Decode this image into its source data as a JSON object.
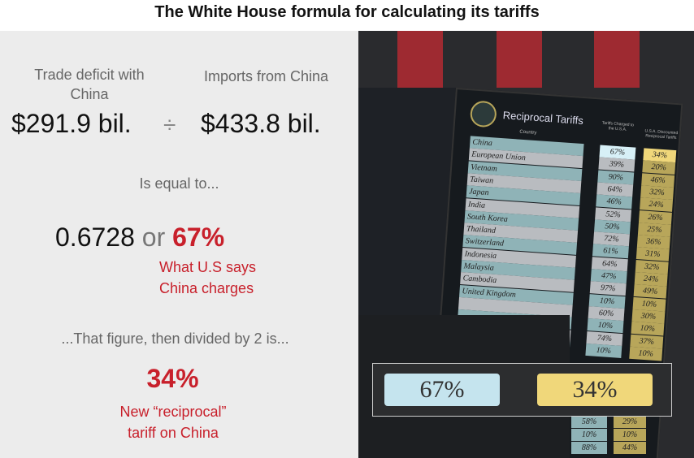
{
  "title": "The White House formula for calculating its tariffs",
  "formula": {
    "deficit_label": "Trade deficit with China",
    "deficit_value": "$291.9 bil.",
    "divide_symbol": "÷",
    "imports_label": "Imports from China",
    "imports_value": "$433.8 bil.",
    "equal_text": "Is equal to...",
    "ratio": "0.6728",
    "or_text": "or",
    "percent": "67%",
    "percent_caption": "What U.S says China charges",
    "divided_text": "...That figure, then divided by 2 is...",
    "result": "34%",
    "result_caption": "New “reciprocal” tariff on China"
  },
  "colors": {
    "accent_red": "#c8202b",
    "panel_bg": "#ececec"
  },
  "photo": {
    "board_title": "Reciprocal Tariffs",
    "col_country": "Country",
    "col_charged": "Tariffs Charged to the U.S.A.",
    "col_reciprocal": "U.S.A. Discounted Reciprocal Tariffs",
    "rows": [
      {
        "country": "China",
        "charged": "67%",
        "reciprocal": "34%"
      },
      {
        "country": "European Union",
        "charged": "39%",
        "reciprocal": "20%"
      },
      {
        "country": "Vietnam",
        "charged": "90%",
        "reciprocal": "46%"
      },
      {
        "country": "Taiwan",
        "charged": "64%",
        "reciprocal": "32%"
      },
      {
        "country": "Japan",
        "charged": "46%",
        "reciprocal": "24%"
      },
      {
        "country": "India",
        "charged": "52%",
        "reciprocal": "26%"
      },
      {
        "country": "South Korea",
        "charged": "50%",
        "reciprocal": "25%"
      },
      {
        "country": "Thailand",
        "charged": "72%",
        "reciprocal": "36%"
      },
      {
        "country": "Switzerland",
        "charged": "61%",
        "reciprocal": "31%"
      },
      {
        "country": "Indonesia",
        "charged": "64%",
        "reciprocal": "32%"
      },
      {
        "country": "Malaysia",
        "charged": "47%",
        "reciprocal": "24%"
      },
      {
        "country": "Cambodia",
        "charged": "97%",
        "reciprocal": "49%"
      },
      {
        "country": "United Kingdom",
        "charged": "10%",
        "reciprocal": "10%"
      },
      {
        "country": "",
        "charged": "60%",
        "reciprocal": "30%"
      },
      {
        "country": "",
        "charged": "10%",
        "reciprocal": "10%"
      },
      {
        "country": "",
        "charged": "74%",
        "reciprocal": "37%"
      },
      {
        "country": "",
        "charged": "10%",
        "reciprocal": "10%"
      }
    ],
    "lower_rows": [
      {
        "charged": "58%",
        "reciprocal": "29%"
      },
      {
        "charged": "10%",
        "reciprocal": "10%"
      },
      {
        "charged": "88%",
        "reciprocal": "44%"
      }
    ],
    "inset_charged": "67%",
    "inset_reciprocal": "34%"
  }
}
